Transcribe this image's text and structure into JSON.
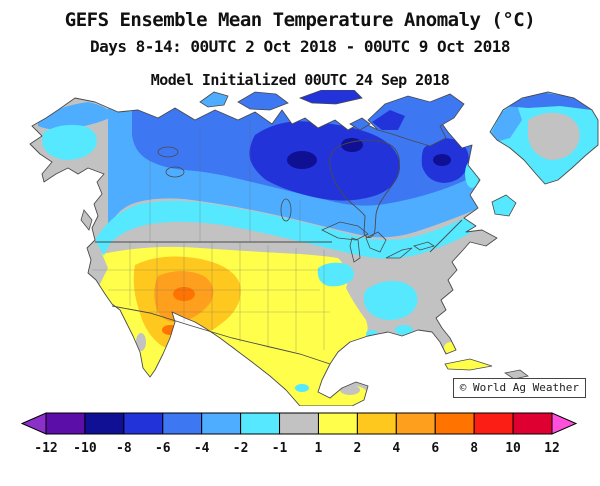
{
  "header": {
    "title": "GEFS Ensemble Mean Temperature Anomaly (°C)",
    "subtitle": "Days 8-14: 00UTC 2 Oct 2018 - 00UTC 9 Oct 2018",
    "initialization": "Model Initialized 00UTC 24 Sep 2018"
  },
  "map": {
    "watermark": "© World Ag Weather"
  },
  "scale": {
    "unit": "°C",
    "boundary_labels": [
      "-12",
      "-10",
      "-8",
      "-6",
      "-4",
      "-2",
      "-1",
      "1",
      "2",
      "4",
      "6",
      "8",
      "10",
      "12"
    ],
    "segments": [
      {
        "range": "< -12",
        "color": "#8B30C8",
        "shape": "arrow-left"
      },
      {
        "range": "-12 to -10",
        "color": "#5C0EA8"
      },
      {
        "range": "-10 to -8",
        "color": "#101095"
      },
      {
        "range": "-8 to -6",
        "color": "#2233D9"
      },
      {
        "range": "-6 to -4",
        "color": "#3D77F2"
      },
      {
        "range": "-4 to -2",
        "color": "#4FADFF"
      },
      {
        "range": "-2 to -1",
        "color": "#55E8FF"
      },
      {
        "range": "-1 to 1",
        "color": "#C2C2C2"
      },
      {
        "range": "1 to 2",
        "color": "#FEFE4B"
      },
      {
        "range": "2 to 4",
        "color": "#FFC81E"
      },
      {
        "range": "4 to 6",
        "color": "#FF9F1E"
      },
      {
        "range": "6 to 8",
        "color": "#FF7300"
      },
      {
        "range": "8 to 10",
        "color": "#FA1E14"
      },
      {
        "range": "10 to 12",
        "color": "#DE0030"
      },
      {
        "range": "> 12",
        "color": "#FF50DC",
        "shape": "arrow-right"
      }
    ]
  }
}
